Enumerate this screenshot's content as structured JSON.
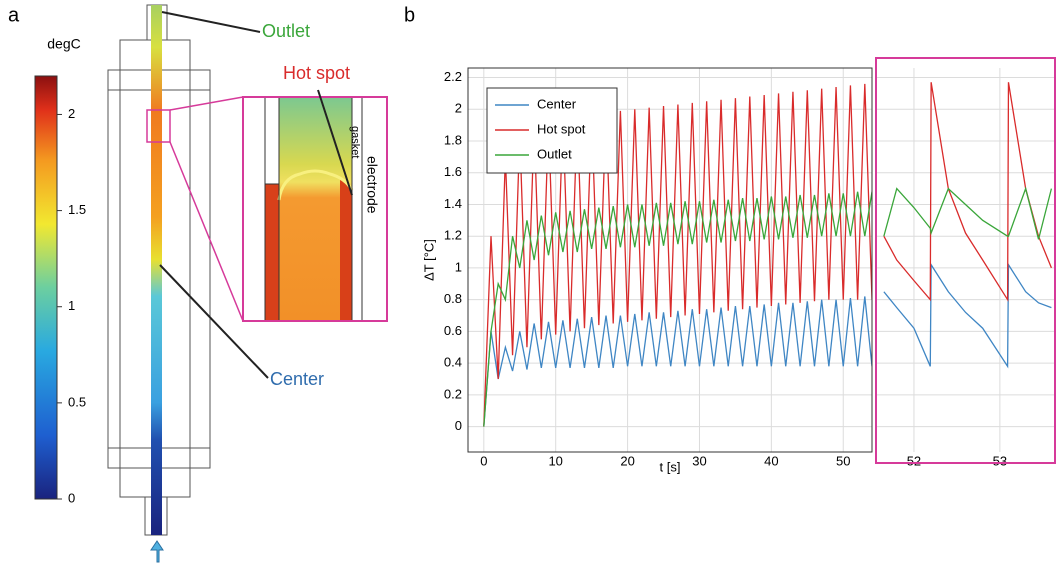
{
  "panel_a": {
    "label": "a",
    "colorbar": {
      "title": "degC",
      "lim": [
        0,
        2.2
      ],
      "ticks": [
        0,
        0.5,
        1,
        1.5,
        2
      ]
    },
    "annotations": {
      "outlet": "Outlet",
      "hot_spot": "Hot spot",
      "center": "Center",
      "gasket": "gasket",
      "electrode": "electrode"
    }
  },
  "panel_b_label": "b",
  "chart_data": [
    {
      "type": "line",
      "xlabel": "t [s]",
      "ylabel": "ΔT [°C]",
      "grid": true,
      "legend": "upper left",
      "xlim": [
        -2.2,
        54
      ],
      "ylim": [
        -0.16,
        2.26
      ],
      "xticks": [
        0,
        10,
        20,
        30,
        40,
        50
      ],
      "yticks": [
        0,
        0.2,
        0.4,
        0.6,
        0.8,
        1,
        1.2,
        1.4,
        1.6,
        1.8,
        2,
        2.2
      ],
      "x": [
        0,
        1,
        2,
        3,
        4,
        5,
        6,
        7,
        8,
        9,
        10,
        11,
        12,
        13,
        14,
        15,
        16,
        17,
        18,
        19,
        20,
        21,
        22,
        23,
        24,
        25,
        26,
        27,
        28,
        29,
        30,
        31,
        32,
        33,
        34,
        35,
        36,
        37,
        38,
        39,
        40,
        41,
        42,
        43,
        44,
        45,
        46,
        47,
        48,
        49,
        50,
        51,
        52,
        53,
        54
      ],
      "series": [
        {
          "name": "Center",
          "color": "#3f86c4",
          "values": [
            0,
            0.6,
            0.3,
            0.5,
            0.35,
            0.6,
            0.36,
            0.65,
            0.37,
            0.66,
            0.37,
            0.67,
            0.37,
            0.68,
            0.37,
            0.69,
            0.37,
            0.7,
            0.37,
            0.7,
            0.38,
            0.71,
            0.38,
            0.72,
            0.38,
            0.72,
            0.38,
            0.73,
            0.38,
            0.74,
            0.38,
            0.74,
            0.38,
            0.75,
            0.38,
            0.76,
            0.38,
            0.76,
            0.38,
            0.77,
            0.38,
            0.78,
            0.38,
            0.78,
            0.38,
            0.79,
            0.38,
            0.8,
            0.38,
            0.8,
            0.38,
            0.81,
            0.38,
            0.82,
            0.38
          ]
        },
        {
          "name": "Hot spot",
          "color": "#d92b2b",
          "values": [
            0,
            1.2,
            0.3,
            1.7,
            0.45,
            1.85,
            0.5,
            1.9,
            0.55,
            1.92,
            0.58,
            1.94,
            0.6,
            1.96,
            0.62,
            1.97,
            0.64,
            1.98,
            0.65,
            1.99,
            0.66,
            2.0,
            0.67,
            2.01,
            0.68,
            2.02,
            0.69,
            2.03,
            0.7,
            2.04,
            0.71,
            2.05,
            0.72,
            2.06,
            0.73,
            2.07,
            0.74,
            2.08,
            0.75,
            2.09,
            0.76,
            2.1,
            0.77,
            2.11,
            0.78,
            2.12,
            0.79,
            2.13,
            0.8,
            2.14,
            0.8,
            2.15,
            0.8,
            2.16,
            0.8
          ]
        },
        {
          "name": "Outlet",
          "color": "#3aa63a",
          "values": [
            0,
            0.6,
            0.9,
            0.8,
            1.2,
            1.0,
            1.3,
            1.05,
            1.33,
            1.08,
            1.35,
            1.1,
            1.36,
            1.1,
            1.37,
            1.12,
            1.38,
            1.12,
            1.39,
            1.13,
            1.4,
            1.13,
            1.4,
            1.14,
            1.41,
            1.14,
            1.41,
            1.15,
            1.42,
            1.15,
            1.42,
            1.16,
            1.43,
            1.16,
            1.43,
            1.17,
            1.44,
            1.17,
            1.44,
            1.18,
            1.45,
            1.18,
            1.45,
            1.19,
            1.46,
            1.19,
            1.46,
            1.2,
            1.47,
            1.2,
            1.47,
            1.2,
            1.48,
            1.2,
            1.48
          ]
        }
      ]
    },
    {
      "type": "line",
      "grid": true,
      "xlim": [
        51.57,
        53.63
      ],
      "ylim": [
        -0.16,
        2.26
      ],
      "xticks": [
        52,
        53
      ],
      "yticks": [
        0,
        0.2,
        0.4,
        0.6,
        0.8,
        1,
        1.2,
        1.4,
        1.6,
        1.8,
        2,
        2.2
      ],
      "x": [
        51.65,
        51.8,
        52.0,
        52.19,
        52.2,
        52.4,
        52.6,
        52.8,
        53.09,
        53.1,
        53.3,
        53.45,
        53.6
      ],
      "series": [
        {
          "name": "Center",
          "color": "#3f86c4",
          "values": [
            0.85,
            0.75,
            0.62,
            0.38,
            1.02,
            0.85,
            0.72,
            0.62,
            0.38,
            1.02,
            0.85,
            0.78,
            0.75
          ]
        },
        {
          "name": "Hot spot",
          "color": "#d92b2b",
          "values": [
            1.2,
            1.05,
            0.92,
            0.8,
            2.17,
            1.5,
            1.22,
            1.05,
            0.8,
            2.17,
            1.5,
            1.2,
            1.0
          ]
        },
        {
          "name": "Outlet",
          "color": "#3aa63a",
          "values": [
            1.2,
            1.5,
            1.38,
            1.25,
            1.22,
            1.5,
            1.4,
            1.3,
            1.2,
            1.2,
            1.5,
            1.18,
            1.5
          ]
        }
      ]
    }
  ]
}
